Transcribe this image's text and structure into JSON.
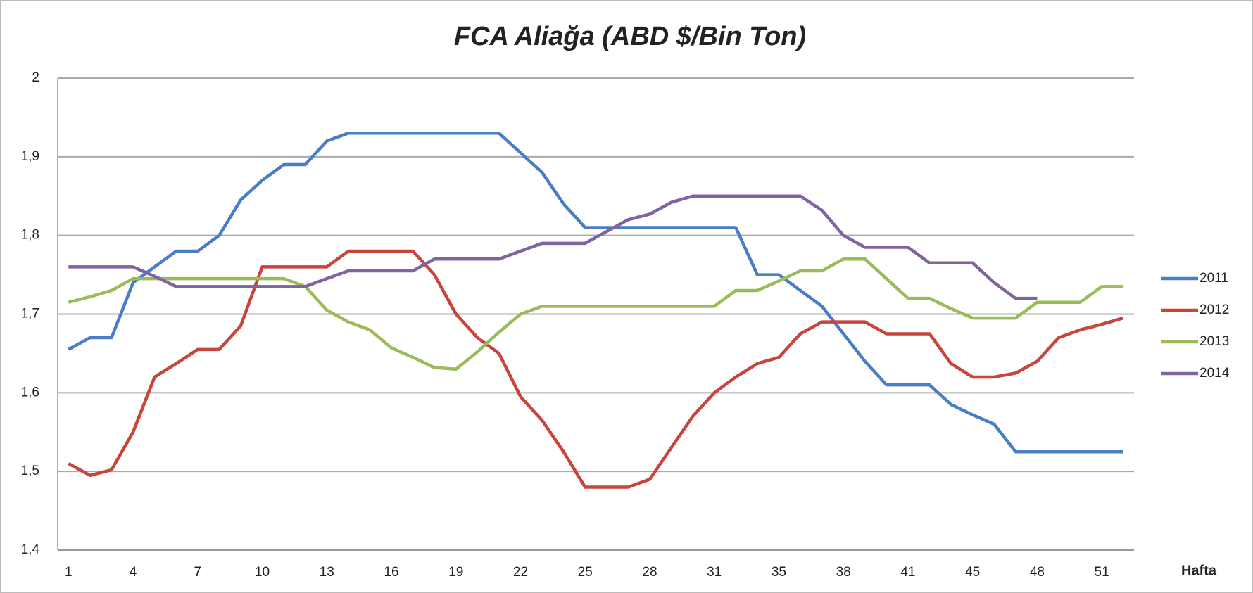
{
  "chart_data": {
    "type": "line",
    "title": "FCA Aliağa (ABD $/Bin Ton)",
    "x_label": "Hafta",
    "categories": [
      "1",
      null,
      null,
      "4",
      null,
      null,
      "7",
      null,
      null,
      "10",
      null,
      null,
      "13",
      null,
      null,
      "16",
      null,
      null,
      "19",
      null,
      null,
      "22",
      null,
      null,
      "25",
      null,
      null,
      "28",
      null,
      null,
      "31",
      null,
      null,
      "35",
      null,
      null,
      "38",
      null,
      null,
      "41",
      null,
      null,
      "45",
      null,
      null,
      "48",
      null,
      null,
      "51",
      null
    ],
    "ylim": [
      1.4,
      2
    ],
    "yticks": [
      {
        "value": 1.4,
        "label": "1,4"
      },
      {
        "value": 1.5,
        "label": "1,5"
      },
      {
        "value": 1.6,
        "label": "1,6"
      },
      {
        "value": 1.7,
        "label": "1,7"
      },
      {
        "value": 1.8,
        "label": "1,8"
      },
      {
        "value": 1.9,
        "label": "1,9"
      },
      2
    ],
    "grid": true,
    "legend": "right",
    "series": [
      {
        "name": "2011",
        "color": "#4a7ec4",
        "values": [
          1.655,
          1.67,
          1.67,
          1.74,
          1.76,
          1.78,
          1.78,
          1.8,
          1.845,
          1.87,
          1.89,
          1.89,
          1.92,
          1.93,
          1.93,
          1.93,
          1.93,
          1.93,
          1.93,
          1.93,
          1.93,
          1.905,
          1.88,
          1.84,
          1.81,
          1.81,
          1.81,
          1.81,
          1.81,
          1.81,
          1.81,
          1.81,
          1.75,
          1.75,
          1.73,
          1.71,
          1.675,
          1.64,
          1.61,
          1.61,
          1.61,
          1.585,
          1.572,
          1.56,
          1.525,
          1.525,
          1.525,
          1.525,
          1.525,
          1.525
        ]
      },
      {
        "name": "2012",
        "color": "#c8453c",
        "values": [
          1.51,
          1.495,
          1.502,
          1.55,
          1.62,
          1.637,
          1.655,
          1.655,
          1.685,
          1.76,
          1.76,
          1.76,
          1.76,
          1.78,
          1.78,
          1.78,
          1.78,
          1.75,
          1.7,
          1.67,
          1.65,
          1.595,
          1.565,
          1.525,
          1.48,
          1.48,
          1.48,
          1.49,
          1.53,
          1.57,
          1.6,
          1.62,
          1.637,
          1.645,
          1.675,
          1.69,
          1.69,
          1.69,
          1.675,
          1.675,
          1.675,
          1.637,
          1.62,
          1.62,
          1.625,
          1.64,
          1.67,
          1.68,
          1.687,
          1.695
        ]
      },
      {
        "name": "2013",
        "color": "#9bbb59",
        "values": [
          1.715,
          1.722,
          1.73,
          1.745,
          1.745,
          1.745,
          1.745,
          1.745,
          1.745,
          1.745,
          1.745,
          1.735,
          1.705,
          1.69,
          1.68,
          1.657,
          1.645,
          1.632,
          1.63,
          1.652,
          1.677,
          1.7,
          1.71,
          1.71,
          1.71,
          1.71,
          1.71,
          1.71,
          1.71,
          1.71,
          1.71,
          1.73,
          1.73,
          1.742,
          1.755,
          1.755,
          1.77,
          1.77,
          1.745,
          1.72,
          1.72,
          1.707,
          1.695,
          1.695,
          1.695,
          1.715,
          1.715,
          1.715,
          1.735,
          1.735
        ]
      },
      {
        "name": "2014",
        "color": "#8064a2",
        "values": [
          1.76,
          1.76,
          1.76,
          1.76,
          1.748,
          1.735,
          1.735,
          1.735,
          1.735,
          1.735,
          1.735,
          1.735,
          1.745,
          1.755,
          1.755,
          1.755,
          1.755,
          1.77,
          1.77,
          1.77,
          1.77,
          1.78,
          1.79,
          1.79,
          1.79,
          1.805,
          1.82,
          1.827,
          1.842,
          1.85,
          1.85,
          1.85,
          1.85,
          1.85,
          1.85,
          1.832,
          1.8,
          1.785,
          1.785,
          1.785,
          1.765,
          1.765,
          1.765,
          1.74,
          1.72,
          1.72,
          null,
          null,
          null,
          null
        ]
      }
    ]
  }
}
